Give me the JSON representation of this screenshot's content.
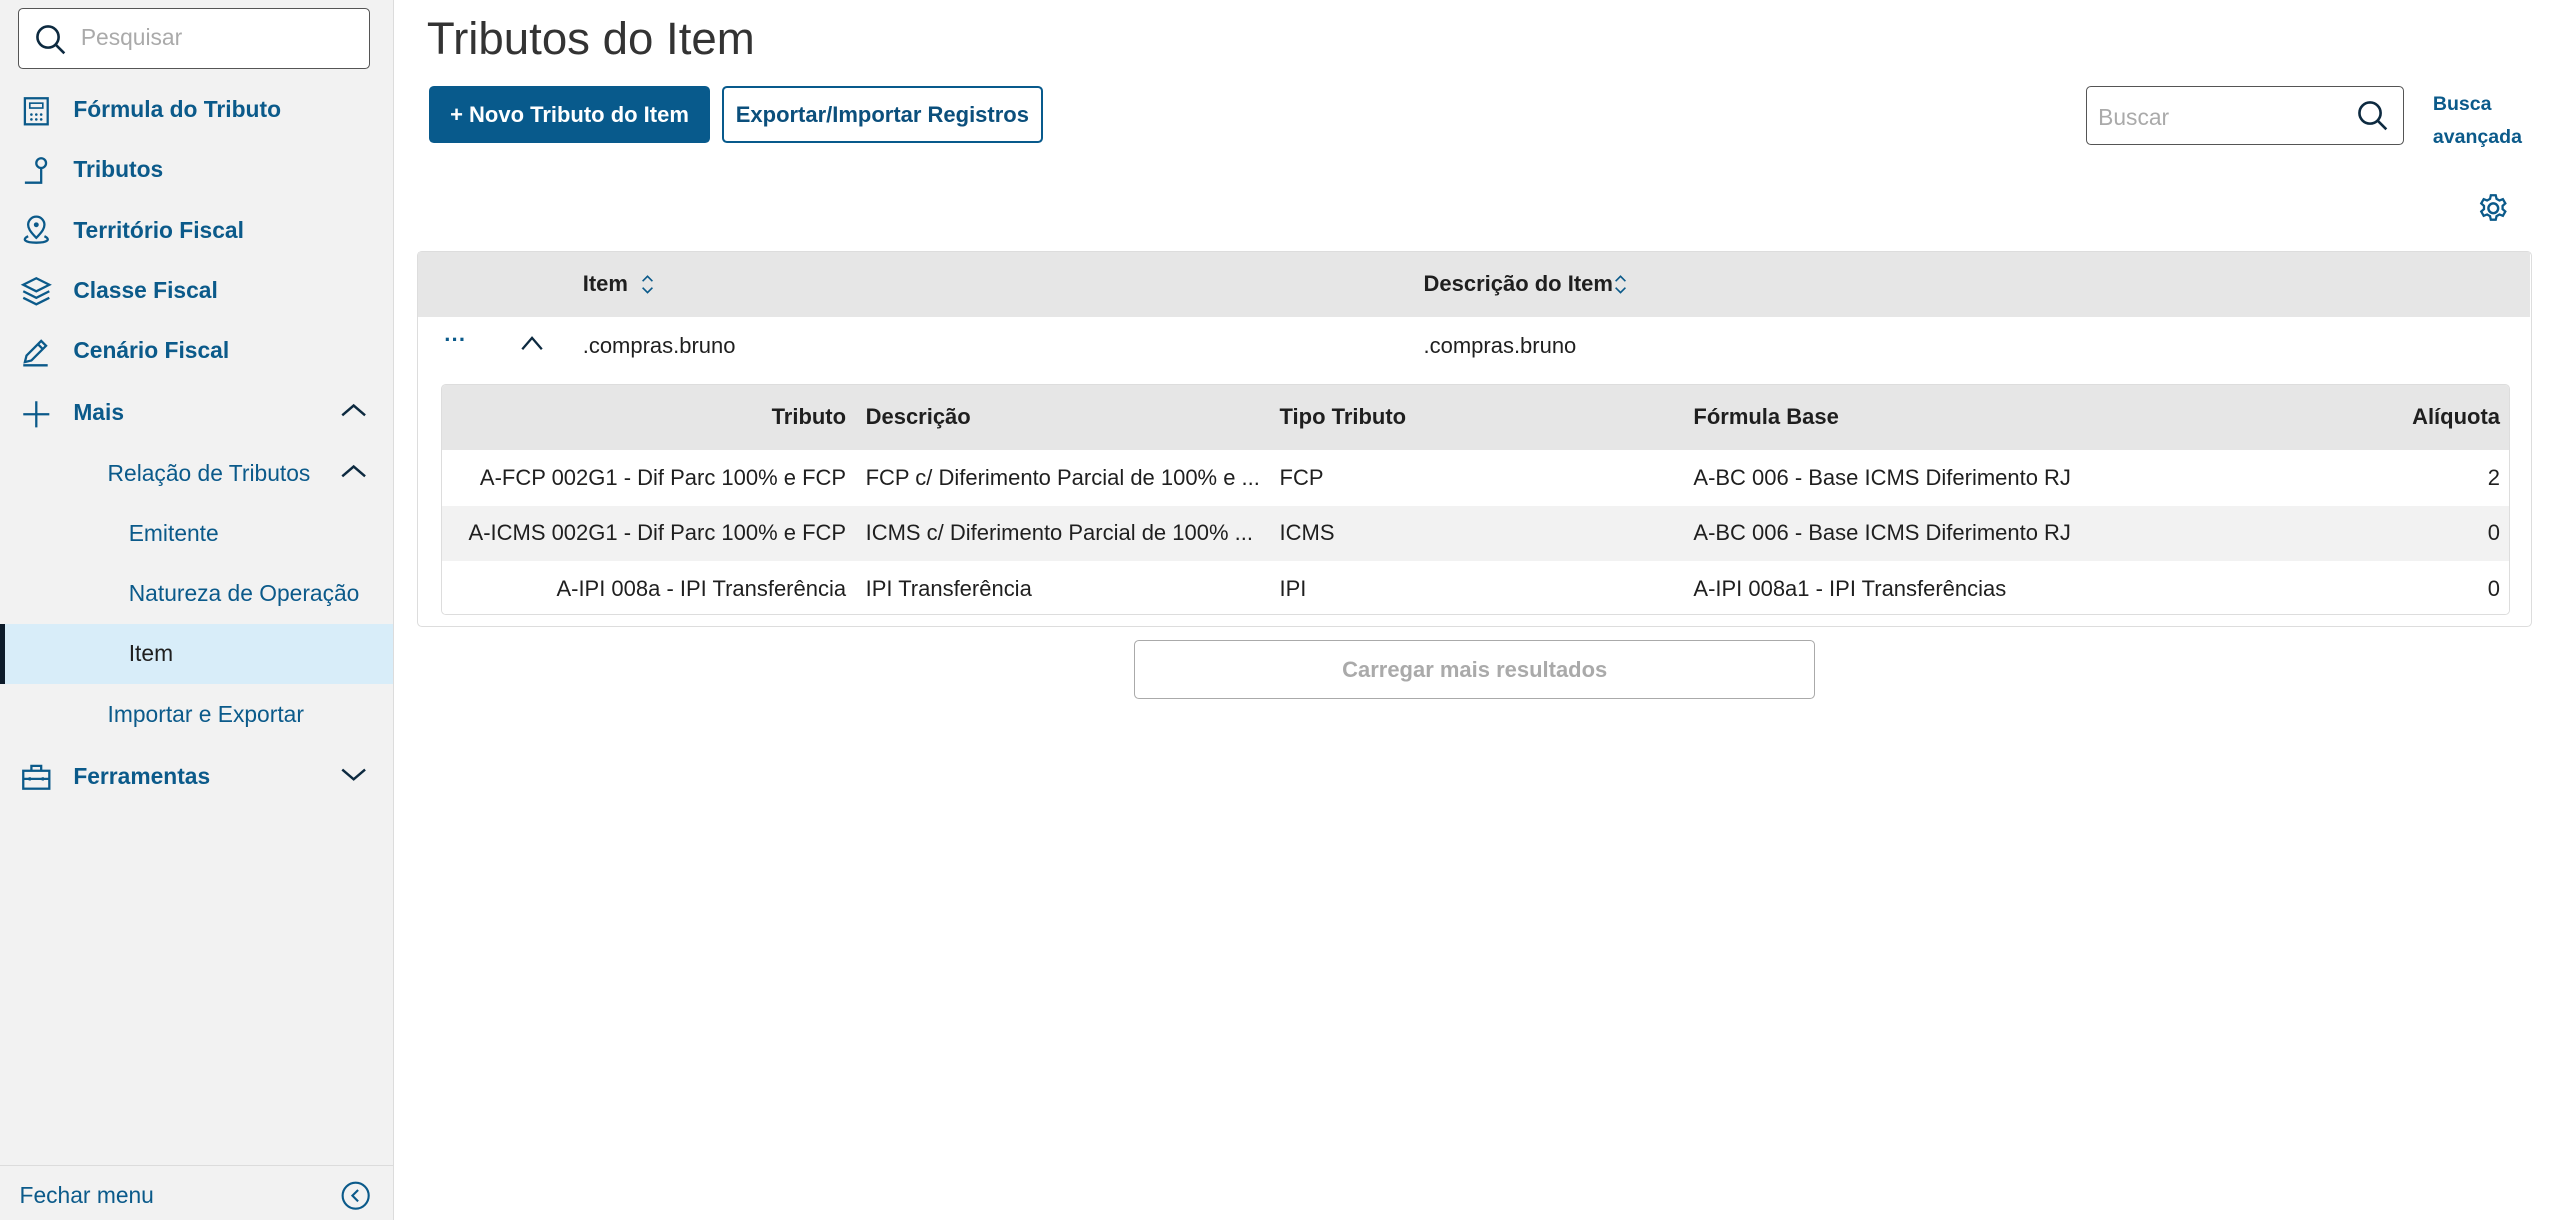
{
  "sidebar": {
    "search_placeholder": "Pesquisar",
    "items": [
      {
        "label": "Fórmula do Tributo",
        "icon": "calculator-icon"
      },
      {
        "label": "Tributos",
        "icon": "tax-icon"
      },
      {
        "label": "Território Fiscal",
        "icon": "map-pin-icon"
      },
      {
        "label": "Classe Fiscal",
        "icon": "layers-icon"
      },
      {
        "label": "Cenário Fiscal",
        "icon": "pencil-icon"
      },
      {
        "label": "Mais",
        "icon": "plus-icon",
        "expanded": true
      },
      {
        "label": "Relação de Tributos",
        "expanded": true
      },
      {
        "label": "Emitente"
      },
      {
        "label": "Natureza de Operação"
      },
      {
        "label": "Item",
        "active": true
      },
      {
        "label": "Importar e Exportar"
      },
      {
        "label": "Ferramentas",
        "icon": "toolbox-icon",
        "expanded": false
      }
    ],
    "footer": "Fechar menu"
  },
  "page": {
    "title": "Tributos do Item",
    "new_button": "+ Novo Tributo do Item",
    "export_button": "Exportar/Importar Registros",
    "search_placeholder": "Buscar",
    "advanced_search": [
      "Busca",
      "avançada"
    ],
    "load_more": "Carregar mais resultados"
  },
  "table": {
    "columns": [
      "Item",
      "Descrição do Item"
    ],
    "rows": [
      {
        "item": ".compras.bruno",
        "descricao": ".compras.bruno"
      }
    ]
  },
  "subtable": {
    "columns": [
      "Tributo",
      "Descrição",
      "Tipo Tributo",
      "Fórmula Base",
      "Alíquota"
    ],
    "rows": [
      [
        "A-FCP 002G1 - Dif Parc 100% e FCP",
        "FCP c/ Diferimento Parcial de 100% e ...",
        "FCP",
        "A-BC 006 - Base ICMS Diferimento RJ",
        "2"
      ],
      [
        "A-ICMS 002G1 - Dif Parc 100% e FCP",
        "ICMS c/ Diferimento Parcial de 100% ...",
        "ICMS",
        "A-BC 006 - Base ICMS Diferimento RJ",
        "0"
      ],
      [
        "A-IPI 008a - IPI Transferência",
        "IPI Transferência",
        "IPI",
        "A-IPI 008a1 - IPI Transferências",
        "0"
      ]
    ]
  },
  "colors": {
    "primary": "#085a8c",
    "sidebar_bg": "#f2f2f2",
    "active_bg": "#d8edf9",
    "header_bg": "#e6e6e6"
  }
}
